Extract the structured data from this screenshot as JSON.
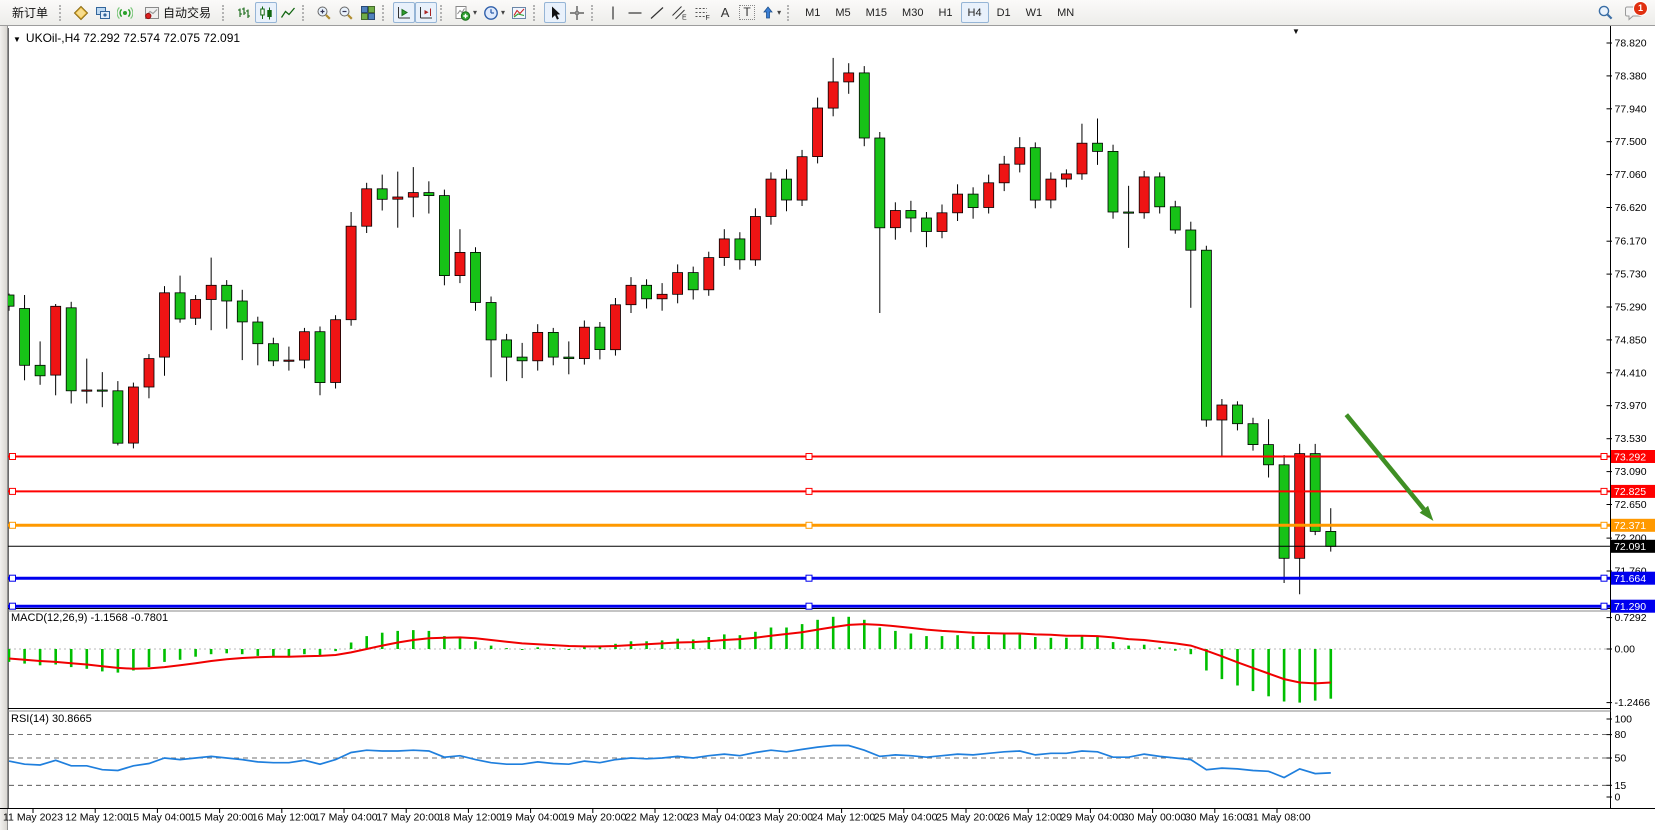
{
  "toolbar": {
    "new_order_label": "新订单",
    "autotrading_label": "自动交易",
    "text_tool_label": "A",
    "textbox_tool_label": "T",
    "timeframes": [
      "M1",
      "M5",
      "M15",
      "M30",
      "H1",
      "H4",
      "D1",
      "W1",
      "MN"
    ],
    "active_timeframe": "H4",
    "chat_badge": "1"
  },
  "chart_data": {
    "type": "candlestick",
    "symbol": "UKOil-",
    "timeframe": "H4",
    "symbol_line": "UKOil-,H4  72.292 72.574 72.075 72.091",
    "ohlc_header": {
      "open": "72.292",
      "high": "72.574",
      "low": "72.075",
      "close": "72.091"
    },
    "up_color": "#ee1414",
    "down_color": "#17c217",
    "price_axis_ticks": [
      "78.820",
      "78.380",
      "77.940",
      "77.500",
      "77.060",
      "76.620",
      "76.170",
      "75.730",
      "75.290",
      "74.850",
      "74.410",
      "73.970",
      "73.530",
      "73.090",
      "72.650",
      "72.200",
      "71.760"
    ],
    "time_axis_labels": [
      "11 May 2023",
      "12 May 12:00",
      "15 May 04:00",
      "15 May 20:00",
      "16 May 12:00",
      "17 May 04:00",
      "17 May 20:00",
      "18 May 12:00",
      "19 May 04:00",
      "19 May 20:00",
      "22 May 12:00",
      "23 May 04:00",
      "23 May 20:00",
      "24 May 12:00",
      "25 May 04:00",
      "25 May 20:00",
      "26 May 12:00",
      "29 May 04:00",
      "30 May 00:00",
      "30 May 16:00",
      "31 May 08:00"
    ],
    "candles": [
      [
        75.45,
        75.47,
        75.24,
        75.3
      ],
      [
        75.27,
        75.45,
        74.31,
        74.51
      ],
      [
        74.51,
        74.83,
        74.25,
        74.37
      ],
      [
        74.38,
        75.33,
        74.11,
        75.3
      ],
      [
        75.28,
        75.36,
        74.0,
        74.17
      ],
      [
        74.17,
        74.6,
        74.0,
        74.18
      ],
      [
        74.18,
        74.42,
        73.95,
        74.17
      ],
      [
        74.17,
        74.3,
        73.44,
        73.47
      ],
      [
        73.47,
        74.28,
        73.4,
        74.22
      ],
      [
        74.22,
        74.66,
        74.07,
        74.6
      ],
      [
        74.62,
        75.57,
        74.37,
        75.48
      ],
      [
        75.48,
        75.71,
        75.08,
        75.13
      ],
      [
        75.14,
        75.45,
        75.05,
        75.39
      ],
      [
        75.39,
        75.95,
        74.98,
        75.58
      ],
      [
        75.58,
        75.65,
        75.0,
        75.37
      ],
      [
        75.37,
        75.52,
        74.58,
        75.09
      ],
      [
        75.09,
        75.16,
        74.51,
        74.8
      ],
      [
        74.8,
        74.88,
        74.5,
        74.57
      ],
      [
        74.57,
        74.76,
        74.44,
        74.58
      ],
      [
        74.58,
        75.01,
        74.47,
        74.96
      ],
      [
        74.96,
        75.03,
        74.11,
        74.28
      ],
      [
        74.28,
        75.18,
        74.2,
        75.12
      ],
      [
        75.12,
        76.56,
        75.04,
        76.37
      ],
      [
        76.37,
        76.95,
        76.28,
        76.87
      ],
      [
        76.87,
        77.06,
        76.58,
        76.73
      ],
      [
        76.73,
        77.1,
        76.35,
        76.76
      ],
      [
        76.76,
        77.16,
        76.49,
        76.82
      ],
      [
        76.82,
        76.97,
        76.54,
        76.78
      ],
      [
        76.78,
        76.86,
        75.58,
        75.71
      ],
      [
        75.71,
        76.33,
        75.61,
        76.02
      ],
      [
        76.02,
        76.09,
        75.24,
        75.35
      ],
      [
        75.35,
        75.43,
        74.35,
        74.85
      ],
      [
        74.85,
        74.93,
        74.3,
        74.62
      ],
      [
        74.62,
        74.81,
        74.34,
        74.57
      ],
      [
        74.57,
        75.06,
        74.44,
        74.95
      ],
      [
        74.95,
        75.01,
        74.51,
        74.62
      ],
      [
        74.62,
        74.83,
        74.39,
        74.6
      ],
      [
        74.6,
        75.11,
        74.52,
        75.02
      ],
      [
        75.02,
        75.09,
        74.59,
        74.72
      ],
      [
        74.72,
        75.41,
        74.64,
        75.32
      ],
      [
        75.32,
        75.69,
        75.21,
        75.58
      ],
      [
        75.58,
        75.66,
        75.27,
        75.4
      ],
      [
        75.4,
        75.61,
        75.24,
        75.46
      ],
      [
        75.46,
        75.86,
        75.34,
        75.75
      ],
      [
        75.75,
        75.83,
        75.39,
        75.52
      ],
      [
        75.52,
        76.03,
        75.44,
        75.95
      ],
      [
        75.95,
        76.33,
        75.84,
        76.2
      ],
      [
        76.2,
        76.29,
        75.79,
        75.92
      ],
      [
        75.92,
        76.61,
        75.84,
        76.5
      ],
      [
        76.5,
        77.09,
        76.39,
        77.0
      ],
      [
        77.0,
        77.13,
        76.57,
        76.72
      ],
      [
        76.72,
        77.39,
        76.64,
        77.3
      ],
      [
        77.3,
        78.09,
        77.21,
        77.95
      ],
      [
        77.95,
        78.62,
        77.84,
        78.3
      ],
      [
        78.3,
        78.55,
        78.14,
        78.42
      ],
      [
        78.42,
        78.51,
        77.44,
        77.55
      ],
      [
        77.55,
        77.63,
        75.21,
        76.35
      ],
      [
        76.35,
        76.69,
        76.19,
        76.58
      ],
      [
        76.58,
        76.71,
        76.29,
        76.48
      ],
      [
        76.48,
        76.56,
        76.09,
        76.3
      ],
      [
        76.3,
        76.66,
        76.21,
        76.55
      ],
      [
        76.55,
        76.93,
        76.44,
        76.8
      ],
      [
        76.8,
        76.89,
        76.47,
        76.62
      ],
      [
        76.62,
        77.06,
        76.54,
        76.95
      ],
      [
        76.95,
        77.31,
        76.84,
        77.2
      ],
      [
        77.2,
        77.56,
        77.09,
        77.42
      ],
      [
        77.42,
        77.49,
        76.61,
        76.72
      ],
      [
        76.72,
        77.09,
        76.61,
        77.0
      ],
      [
        77.0,
        77.13,
        76.89,
        77.07
      ],
      [
        77.07,
        77.74,
        76.99,
        77.48
      ],
      [
        77.48,
        77.81,
        77.19,
        77.37
      ],
      [
        77.37,
        77.46,
        76.47,
        76.56
      ],
      [
        76.56,
        76.91,
        76.08,
        76.55
      ],
      [
        76.55,
        77.11,
        76.47,
        77.03
      ],
      [
        77.03,
        77.09,
        76.54,
        76.63
      ],
      [
        76.63,
        76.71,
        76.27,
        76.32
      ],
      [
        76.32,
        76.43,
        75.28,
        76.05
      ],
      [
        76.05,
        76.11,
        73.69,
        73.78
      ],
      [
        73.78,
        74.06,
        73.3,
        73.98
      ],
      [
        73.98,
        74.03,
        73.64,
        73.73
      ],
      [
        73.73,
        73.81,
        73.37,
        73.45
      ],
      [
        73.45,
        73.79,
        73.01,
        73.18
      ],
      [
        73.18,
        73.31,
        71.6,
        71.93
      ],
      [
        71.93,
        73.46,
        71.45,
        73.33
      ],
      [
        73.33,
        73.46,
        72.24,
        72.29
      ],
      [
        72.29,
        72.6,
        72.02,
        72.09
      ]
    ],
    "hlines": [
      {
        "price": 73.292,
        "label": "73.292",
        "color": "#ff0000",
        "width": 2,
        "handles": true
      },
      {
        "price": 72.825,
        "label": "72.825",
        "color": "#ff0000",
        "width": 2,
        "handles": true
      },
      {
        "price": 72.371,
        "label": "72.371",
        "color": "#ff9900",
        "width": 3,
        "handles": true
      },
      {
        "price": 72.091,
        "label": "72.091",
        "color": "#000000",
        "width": 1,
        "handles": false
      },
      {
        "price": 71.664,
        "label": "71.664",
        "color": "#0000ee",
        "width": 3,
        "handles": true
      },
      {
        "price": 71.29,
        "label": "71.290",
        "color": "#0000ee",
        "width": 3,
        "handles": true
      }
    ],
    "arrow": {
      "color": "#3f8f24",
      "from": {
        "bar": 86.0,
        "price": 73.85
      },
      "to": {
        "bar": 91.6,
        "price": 72.43
      }
    },
    "macd": {
      "label": "MACD(12,26,9) -1.1568 -0.7801",
      "main_value": -1.1568,
      "signal_value": -0.7801,
      "histogram_color": "#00bf00",
      "signal_color": "#f00000",
      "axis_ticks": [
        {
          "label": "0.7292",
          "value": 0.7292
        },
        {
          "label": "0.00",
          "value": 0
        },
        {
          "label": "-1.2466",
          "value": -1.2466
        }
      ],
      "values": [
        -0.3,
        -0.34,
        -0.38,
        -0.36,
        -0.42,
        -0.46,
        -0.52,
        -0.55,
        -0.5,
        -0.42,
        -0.3,
        -0.25,
        -0.18,
        -0.12,
        -0.1,
        -0.12,
        -0.16,
        -0.18,
        -0.17,
        -0.12,
        -0.14,
        -0.05,
        0.15,
        0.3,
        0.38,
        0.42,
        0.44,
        0.42,
        0.3,
        0.28,
        0.18,
        0.08,
        0.02,
        0.0,
        0.04,
        0.02,
        0.0,
        0.05,
        0.05,
        0.12,
        0.18,
        0.18,
        0.2,
        0.24,
        0.22,
        0.28,
        0.34,
        0.32,
        0.4,
        0.5,
        0.5,
        0.58,
        0.68,
        0.75,
        0.75,
        0.68,
        0.5,
        0.42,
        0.36,
        0.3,
        0.3,
        0.32,
        0.3,
        0.32,
        0.34,
        0.36,
        0.28,
        0.26,
        0.26,
        0.3,
        0.28,
        0.16,
        0.08,
        0.1,
        0.04,
        -0.04,
        -0.12,
        -0.5,
        -0.7,
        -0.85,
        -0.98,
        -1.1,
        -1.22,
        -1.2466,
        -1.2,
        -1.1568
      ],
      "signal": [
        -0.22,
        -0.25,
        -0.28,
        -0.3,
        -0.33,
        -0.36,
        -0.4,
        -0.44,
        -0.46,
        -0.45,
        -0.42,
        -0.38,
        -0.33,
        -0.28,
        -0.24,
        -0.21,
        -0.19,
        -0.18,
        -0.18,
        -0.17,
        -0.16,
        -0.14,
        -0.08,
        0.0,
        0.08,
        0.15,
        0.21,
        0.25,
        0.26,
        0.27,
        0.25,
        0.21,
        0.17,
        0.13,
        0.11,
        0.09,
        0.07,
        0.06,
        0.06,
        0.07,
        0.09,
        0.11,
        0.13,
        0.15,
        0.16,
        0.18,
        0.21,
        0.23,
        0.26,
        0.31,
        0.35,
        0.39,
        0.45,
        0.51,
        0.56,
        0.58,
        0.56,
        0.53,
        0.49,
        0.45,
        0.42,
        0.4,
        0.38,
        0.37,
        0.36,
        0.36,
        0.34,
        0.33,
        0.31,
        0.31,
        0.3,
        0.27,
        0.23,
        0.21,
        0.17,
        0.13,
        0.08,
        -0.04,
        -0.17,
        -0.31,
        -0.44,
        -0.57,
        -0.7,
        -0.78,
        -0.8,
        -0.7801
      ]
    },
    "rsi": {
      "label": "RSI(14) 30.8665",
      "value": 30.8665,
      "line_color": "#1f7fdd",
      "levels": [
        80,
        50,
        15
      ],
      "axis_ticks": [
        {
          "label": "100",
          "value": 100
        },
        {
          "label": "80",
          "value": 80
        },
        {
          "label": "50",
          "value": 50
        },
        {
          "label": "15",
          "value": 15
        },
        {
          "label": "0",
          "value": 0
        }
      ],
      "values": [
        46,
        42,
        41,
        47,
        40,
        40,
        35,
        34,
        40,
        43,
        50,
        48,
        50,
        52,
        50,
        48,
        45,
        44,
        44,
        47,
        42,
        48,
        57,
        60,
        59,
        59,
        60,
        59,
        51,
        53,
        48,
        44,
        42,
        42,
        45,
        43,
        42,
        46,
        44,
        48,
        50,
        49,
        50,
        52,
        50,
        53,
        55,
        53,
        57,
        60,
        58,
        61,
        64,
        66,
        66,
        60,
        52,
        54,
        53,
        51,
        53,
        55,
        54,
        56,
        58,
        59,
        54,
        56,
        56,
        59,
        58,
        51,
        51,
        55,
        52,
        50,
        48,
        35,
        37,
        36,
        34,
        33,
        25,
        36,
        30,
        30.87
      ]
    }
  }
}
